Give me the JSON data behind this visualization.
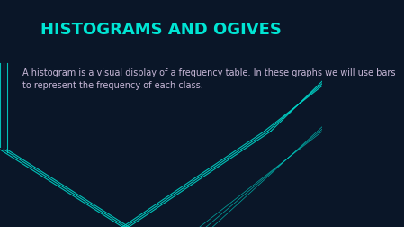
{
  "title": "HISTOGRAMS AND OGIVES",
  "title_color": "#00e5d4",
  "title_fontsize": 13,
  "body_text": "A histogram is a visual display of a frequency table. In these graphs we will use bars\nto represent the frequency of each class.",
  "body_color": "#c8b8d8",
  "body_fontsize": 7,
  "bg_color": "#0a1628",
  "figsize": [
    4.49,
    2.53
  ],
  "dpi": 100,
  "cyan_color": "#00d4c8",
  "cyan_linewidth": 0.8
}
